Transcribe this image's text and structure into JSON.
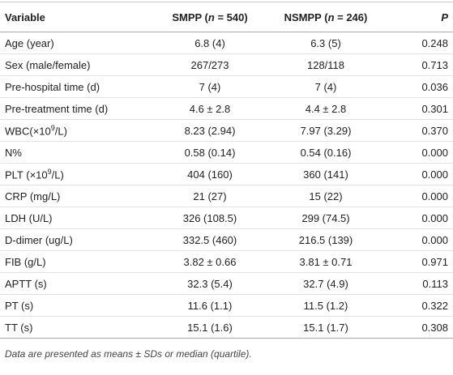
{
  "table": {
    "header": [
      [
        "Variable"
      ],
      [
        "SMPP (",
        "n",
        " = 540)"
      ],
      [
        "NSMPP (",
        "n",
        " = 246)"
      ],
      [
        "P"
      ]
    ],
    "rows": [
      [
        "Age (year)",
        "6.8 (4)",
        "6.3 (5)",
        "0.248"
      ],
      [
        "Sex (male/female)",
        "267/273",
        "128/118",
        "0.713"
      ],
      [
        "Pre-hospital time (d)",
        "7 (4)",
        "7 (4)",
        "0.036"
      ],
      [
        "Pre-treatment time (d)",
        "4.6 ± 2.8",
        "4.4 ± 2.8",
        "0.301"
      ],
      [
        [
          "WBC(×10",
          "9",
          "/L)"
        ],
        "8.23 (2.94)",
        "7.97 (3.29)",
        "0.370"
      ],
      [
        "N%",
        "0.58 (0.14)",
        "0.54 (0.16)",
        "0.000"
      ],
      [
        [
          "PLT (×10",
          "9",
          "/L)"
        ],
        "404 (160)",
        "360 (141)",
        "0.000"
      ],
      [
        "CRP (mg/L)",
        "21 (27)",
        "15 (22)",
        "0.000"
      ],
      [
        "LDH (U/L)",
        "326 (108.5)",
        "299 (74.5)",
        "0.000"
      ],
      [
        "D-dimer (ug/L)",
        "332.5 (460)",
        "216.5 (139)",
        "0.000"
      ],
      [
        "FIB (g/L)",
        "3.82 ± 0.66",
        "3.81 ± 0.71",
        "0.971"
      ],
      [
        "APTT (s)",
        "32.3 (5.4)",
        "32.7 (4.9)",
        "0.113"
      ],
      [
        "PT (s)",
        "11.6 (1.1)",
        "11.5 (1.2)",
        "0.322"
      ],
      [
        "TT (s)",
        "15.1 (1.6)",
        "15.1 (1.7)",
        "0.308"
      ]
    ]
  },
  "footnote": "Data are presented as means ± SDs or median (quartile)."
}
